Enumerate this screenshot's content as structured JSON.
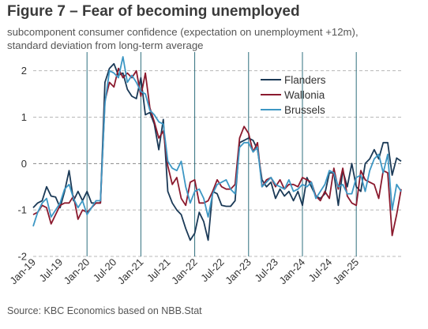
{
  "title": "Figure 7 – Fear of becoming unemployed",
  "subtitle_line1": "subcomponent consumer confidence (expectation on unemployment +12m),",
  "subtitle_line2": "standard deviation from long-term average",
  "source": "Source: KBC Economics based on NBB.Stat",
  "chart_data": {
    "type": "line",
    "ylim": [
      -2,
      2.3
    ],
    "yticks": [
      2,
      1,
      0,
      -1,
      -2
    ],
    "x_start": "Jan-19",
    "x_labels": [
      "Jan-19",
      "Jul-19",
      "Jan-20",
      "Jul-20",
      "Jan-21",
      "Jul-21",
      "Jan-22",
      "Jul-22",
      "Jan-23",
      "Jul-23",
      "Jan-24",
      "Jul-24",
      "Jan-25"
    ],
    "grid": "horizontal dashed",
    "legend_position": "top-center",
    "series": [
      {
        "name": "Flanders",
        "color": "#1b3a57",
        "values": [
          -0.95,
          -0.85,
          -0.8,
          -0.5,
          -0.7,
          -0.72,
          -0.95,
          -0.6,
          -0.15,
          -0.8,
          -0.6,
          -0.8,
          -0.6,
          -0.85,
          -0.85,
          -0.85,
          1.75,
          2.05,
          2.15,
          1.9,
          1.95,
          1.6,
          1.45,
          1.4,
          1.85,
          1.05,
          1.1,
          0.85,
          0.3,
          0.95,
          -0.6,
          -0.85,
          -1.0,
          -1.1,
          -1.4,
          -1.65,
          -1.5,
          -1.05,
          -1.25,
          -1.65,
          -0.6,
          -0.65,
          -0.9,
          -0.92,
          -0.92,
          -0.8,
          0.45,
          0.5,
          0.55,
          0.5,
          0.3,
          -0.35,
          -0.5,
          -0.4,
          -0.75,
          -0.55,
          -0.7,
          -0.6,
          -0.8,
          -0.6,
          -0.9,
          -0.3,
          -0.5,
          -0.7,
          -0.75,
          -0.65,
          -0.2,
          -0.2,
          -0.9,
          -0.15,
          -0.5,
          0.0,
          -0.5,
          -0.6,
          0.0,
          0.1,
          0.3,
          0.1,
          0.45,
          0.45,
          -0.25,
          0.12,
          0.05
        ]
      },
      {
        "name": "Wallonia",
        "color": "#8b1a2e",
        "values": [
          -1.1,
          -1.05,
          -0.9,
          -0.95,
          -1.3,
          -1.1,
          -0.9,
          -0.85,
          -0.85,
          -0.7,
          -1.2,
          -1.0,
          -1.05,
          -0.95,
          -0.85,
          -0.85,
          1.35,
          1.75,
          1.65,
          2.05,
          1.85,
          1.95,
          1.85,
          2.0,
          1.45,
          1.95,
          1.2,
          0.9,
          0.55,
          0.7,
          -0.05,
          -0.45,
          -0.3,
          -0.75,
          -0.9,
          -0.4,
          -0.35,
          -0.85,
          -0.85,
          -0.8,
          -0.6,
          -0.35,
          -0.5,
          -0.55,
          -0.55,
          -0.45,
          0.55,
          0.8,
          0.65,
          0.25,
          0.45,
          -0.5,
          -0.35,
          -0.3,
          -0.5,
          -0.35,
          -0.55,
          -0.45,
          -0.45,
          -0.5,
          -0.3,
          -0.35,
          -0.4,
          -0.7,
          -0.8,
          -0.6,
          -0.75,
          -0.1,
          -0.55,
          -0.1,
          -0.7,
          -0.85,
          -0.9,
          -0.15,
          -0.35,
          -0.4,
          -0.45,
          -0.75,
          -0.15,
          -0.2,
          -1.55,
          -1.1,
          -0.55
        ]
      },
      {
        "name": "Brussels",
        "color": "#3d97c4",
        "values": [
          -1.35,
          -1.05,
          -0.85,
          -0.75,
          -1.15,
          -1.0,
          -0.85,
          -0.55,
          -0.45,
          -0.75,
          -0.95,
          -0.8,
          -1.1,
          -0.95,
          -0.8,
          -0.8,
          1.3,
          2.0,
          1.95,
          1.85,
          2.3,
          1.75,
          1.9,
          1.75,
          1.55,
          1.5,
          1.15,
          1.05,
          0.9,
          0.85,
          0.05,
          -0.1,
          -0.15,
          0.05,
          -0.5,
          -0.85,
          -0.6,
          -0.55,
          -0.75,
          -1.15,
          -0.65,
          -0.45,
          -0.4,
          -0.35,
          -0.55,
          -0.65,
          0.35,
          0.45,
          0.45,
          0.25,
          0.35,
          -0.5,
          -0.4,
          -0.3,
          -0.45,
          -0.5,
          -0.55,
          -0.35,
          -0.6,
          -0.55,
          -0.45,
          -0.5,
          -0.4,
          -0.75,
          -0.6,
          -0.45,
          -0.15,
          -0.2,
          -0.5,
          -0.45,
          -0.65,
          -0.65,
          -0.3,
          -0.25,
          -0.6,
          -0.15,
          0.1,
          0.2,
          -0.2,
          0.2,
          -1.0,
          -0.45,
          -0.6
        ]
      }
    ]
  }
}
